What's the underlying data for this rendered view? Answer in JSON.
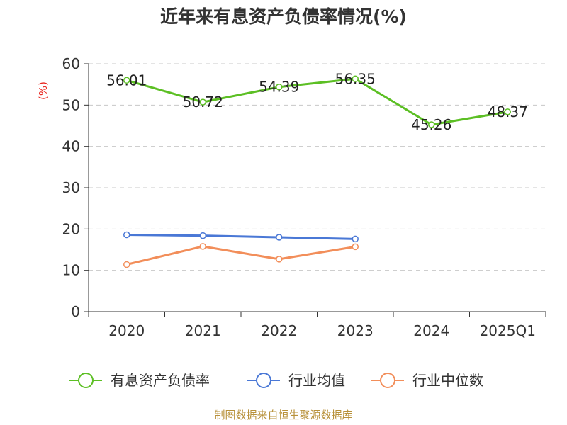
{
  "chart_data": {
    "type": "line",
    "title": "近年来有息资产负债率情况(%)",
    "ylabel": "(%)",
    "categories": [
      "2020",
      "2021",
      "2022",
      "2023",
      "2024",
      "2025Q1"
    ],
    "ylim": [
      0,
      60
    ],
    "yticks": [
      "0",
      "10",
      "20",
      "30",
      "40",
      "50",
      "60"
    ],
    "grid": true,
    "legend_position": "bottom",
    "series": [
      {
        "name": "有息资产负债率",
        "color": "#5cbf24",
        "values": [
          56.01,
          50.72,
          54.39,
          56.35,
          45.26,
          48.37
        ],
        "labels": [
          "56.01",
          "50.72",
          "54.39",
          "56.35",
          "45.26",
          "48.37"
        ]
      },
      {
        "name": "行业均值",
        "color": "#4a78d6",
        "values": [
          18.6,
          18.4,
          18.0,
          17.6,
          null,
          null
        ]
      },
      {
        "name": "行业中位数",
        "color": "#f28e5a",
        "values": [
          11.4,
          15.8,
          12.7,
          15.7,
          null,
          null
        ]
      }
    ]
  },
  "source": "制图数据来自恒生聚源数据库"
}
